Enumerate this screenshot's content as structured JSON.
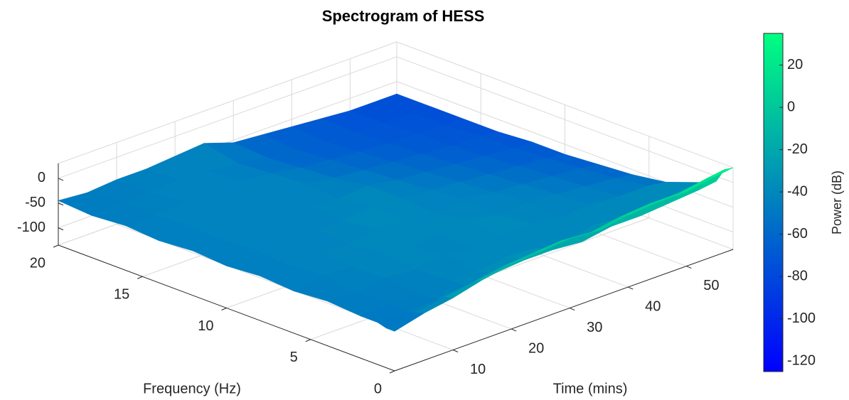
{
  "chart_data": {
    "type": "surface",
    "title": "Spectrogram of HESS",
    "xlabel": "Time (mins)",
    "ylabel": "Frequency (Hz)",
    "colorbar_label": "Power (dB)",
    "x": [
      0,
      5,
      10,
      15,
      20,
      25,
      30,
      35,
      40,
      45,
      50,
      55,
      58
    ],
    "y": [
      0,
      0.5,
      1,
      2,
      4,
      6,
      8,
      10,
      12,
      14,
      16,
      18,
      20
    ],
    "z": [
      [
        -55,
        -40,
        -30,
        -15,
        -5,
        0,
        5,
        0,
        10,
        15,
        15,
        25,
        30
      ],
      [
        -55,
        -45,
        -35,
        -25,
        -15,
        -10,
        -5,
        -10,
        0,
        5,
        5,
        15,
        20
      ],
      [
        -50,
        -50,
        -45,
        -40,
        -35,
        -30,
        -30,
        -35,
        -25,
        -25,
        -20,
        -15,
        -10
      ],
      [
        -50,
        -45,
        -50,
        -40,
        -45,
        -35,
        -40,
        -45,
        -35,
        -40,
        -35,
        -30,
        -25
      ],
      [
        -45,
        -50,
        -40,
        -45,
        -35,
        -45,
        -40,
        -35,
        -45,
        -40,
        -45,
        -45,
        -50
      ],
      [
        -50,
        -40,
        -45,
        -35,
        -45,
        -40,
        -35,
        -45,
        -40,
        -45,
        -50,
        -55,
        -60
      ],
      [
        -45,
        -45,
        -40,
        -45,
        -35,
        -40,
        -45,
        -40,
        -45,
        -50,
        -55,
        -60,
        -65
      ],
      [
        -50,
        -40,
        -45,
        -40,
        -45,
        -35,
        -40,
        -45,
        -50,
        -55,
        -60,
        -65,
        -70
      ],
      [
        -45,
        -45,
        -40,
        -45,
        -40,
        -45,
        -40,
        -50,
        -55,
        -60,
        -65,
        -70,
        -70
      ],
      [
        -50,
        -40,
        -45,
        -40,
        -45,
        -40,
        -50,
        -55,
        -60,
        -65,
        -70,
        -70,
        -75
      ],
      [
        -45,
        -45,
        -40,
        -45,
        -40,
        -45,
        -55,
        -60,
        -65,
        -70,
        -70,
        -75,
        -75
      ],
      [
        -50,
        -45,
        -45,
        -40,
        -45,
        -50,
        -60,
        -65,
        -70,
        -70,
        -75,
        -75,
        -75
      ],
      [
        -45,
        -50,
        -45,
        -45,
        -40,
        -35,
        -55,
        -60,
        -65,
        -70,
        -75,
        -75,
        -75
      ]
    ],
    "xlim": [
      0,
      58
    ],
    "ylim": [
      0,
      20
    ],
    "zlim": [
      -135,
      30
    ],
    "clim": [
      -125,
      35
    ],
    "xticks": [
      10,
      20,
      30,
      40,
      50
    ],
    "yticks": [
      0,
      5,
      10,
      15,
      20
    ],
    "zticks": [
      -100,
      -50,
      0
    ],
    "cticks": [
      -120,
      -100,
      -80,
      -60,
      -40,
      -20,
      0,
      20
    ],
    "colormap": [
      "#0000ff",
      "#00ff80"
    ],
    "grid": true
  }
}
